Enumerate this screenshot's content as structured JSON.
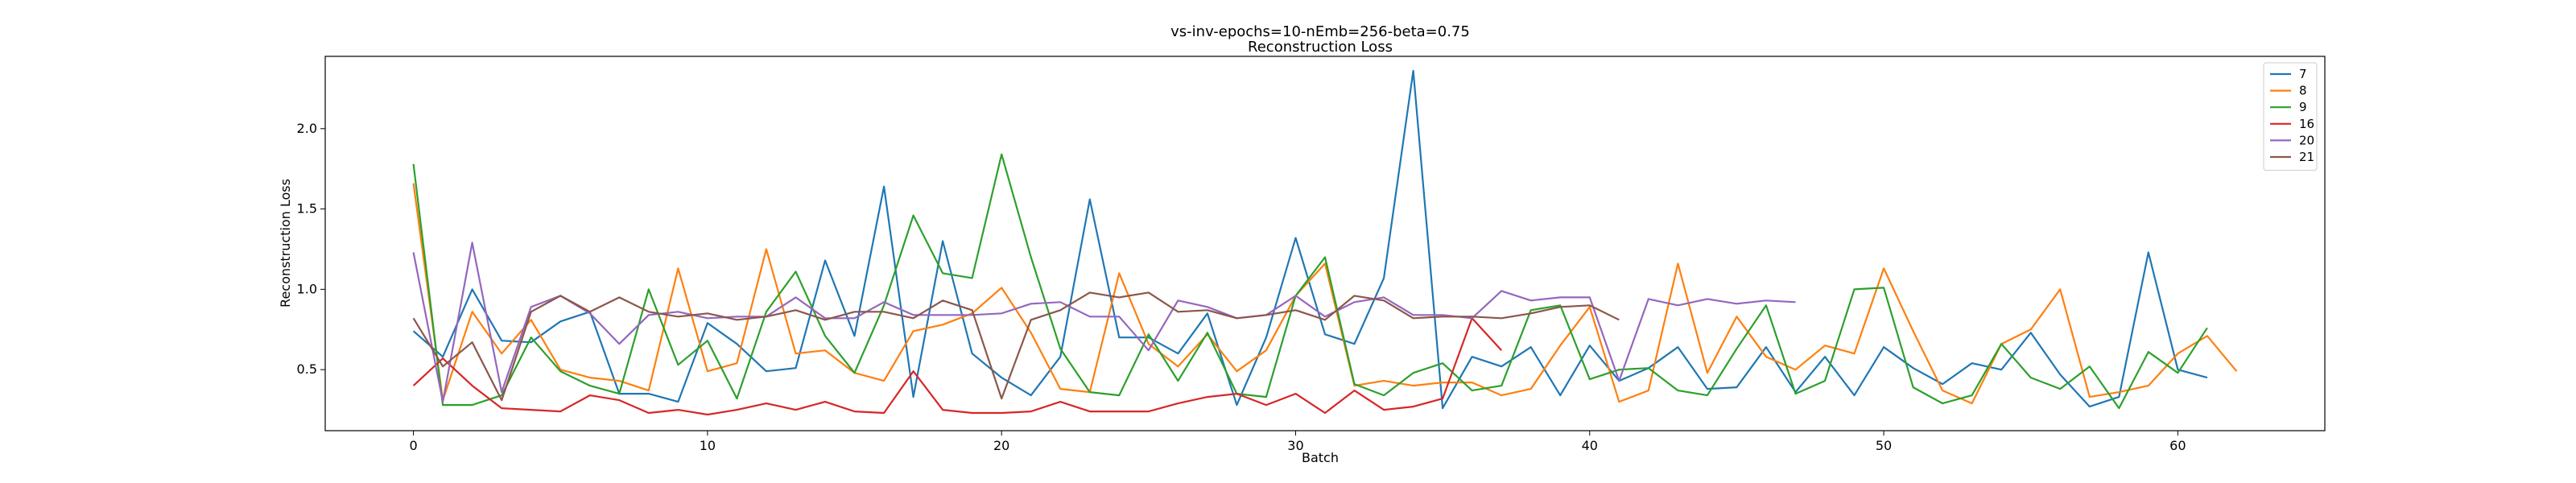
{
  "chart_data": {
    "type": "line",
    "title": "vs-inv-epochs=10-nEmb=256-beta=0.75",
    "subtitle": "Reconstruction Loss",
    "xlabel": "Batch",
    "ylabel": "Reconstruction Loss",
    "xlim": [
      -3,
      65
    ],
    "ylim": [
      0.12,
      2.45
    ],
    "xticks": [
      0,
      10,
      20,
      30,
      40,
      50,
      60
    ],
    "yticks": [
      0.5,
      1.0,
      1.5,
      2.0
    ],
    "ytick_labels": [
      "0.5",
      "1.0",
      "1.5",
      "2.0"
    ],
    "grid": false,
    "legend_position": "top-right",
    "series": [
      {
        "name": "7",
        "color": "#1f77b4",
        "values": [
          0.74,
          0.58,
          1.0,
          0.68,
          0.67,
          0.8,
          0.86,
          0.35,
          0.35,
          0.3,
          0.79,
          0.66,
          0.49,
          0.51,
          1.18,
          0.71,
          1.64,
          0.33,
          1.3,
          0.6,
          0.45,
          0.34,
          0.58,
          1.56,
          0.7,
          0.7,
          0.6,
          0.85,
          0.28,
          0.7,
          1.32,
          0.72,
          0.66,
          1.07,
          2.36,
          0.26,
          0.58,
          0.52,
          0.64,
          0.34,
          0.65,
          0.43,
          0.51,
          0.64,
          0.38,
          0.39,
          0.64,
          0.36,
          0.58,
          0.34,
          0.64,
          0.51,
          0.41,
          0.54,
          0.5,
          0.73,
          0.47,
          0.27,
          0.33,
          1.23,
          0.5,
          0.45
        ]
      },
      {
        "name": "8",
        "color": "#ff7f0e",
        "values": [
          1.66,
          0.31,
          0.86,
          0.6,
          0.81,
          0.5,
          0.45,
          0.43,
          0.37,
          1.13,
          0.49,
          0.54,
          1.25,
          0.6,
          0.62,
          0.48,
          0.43,
          0.74,
          0.78,
          0.85,
          1.01,
          0.73,
          0.38,
          0.36,
          1.1,
          0.66,
          0.52,
          0.72,
          0.49,
          0.62,
          0.96,
          1.16,
          0.4,
          0.43,
          0.4,
          0.42,
          0.42,
          0.34,
          0.38,
          0.65,
          0.89,
          0.3,
          0.37,
          1.16,
          0.48,
          0.83,
          0.58,
          0.5,
          0.65,
          0.6,
          1.13,
          0.74,
          0.37,
          0.29,
          0.66,
          0.75,
          1.0,
          0.33,
          0.36,
          0.4,
          0.6,
          0.71,
          0.49
        ]
      },
      {
        "name": "9",
        "color": "#2ca02c",
        "values": [
          1.78,
          0.28,
          0.28,
          0.34,
          0.7,
          0.49,
          0.4,
          0.35,
          1.0,
          0.53,
          0.68,
          0.32,
          0.86,
          1.11,
          0.71,
          0.48,
          0.9,
          1.46,
          1.1,
          1.07,
          1.84,
          1.2,
          0.63,
          0.36,
          0.34,
          0.72,
          0.43,
          0.73,
          0.35,
          0.33,
          0.96,
          1.2,
          0.41,
          0.34,
          0.48,
          0.54,
          0.37,
          0.4,
          0.87,
          0.9,
          0.44,
          0.5,
          0.51,
          0.37,
          0.34,
          0.63,
          0.9,
          0.35,
          0.43,
          1.0,
          1.01,
          0.39,
          0.29,
          0.34,
          0.66,
          0.45,
          0.38,
          0.52,
          0.26,
          0.61,
          0.48,
          0.76
        ]
      },
      {
        "name": "16",
        "color": "#d62728",
        "values": [
          0.4,
          0.57,
          0.4,
          0.26,
          0.25,
          0.24,
          0.34,
          0.31,
          0.23,
          0.25,
          0.22,
          0.25,
          0.29,
          0.25,
          0.3,
          0.24,
          0.23,
          0.49,
          0.25,
          0.23,
          0.23,
          0.24,
          0.3,
          0.24,
          0.24,
          0.24,
          0.29,
          0.33,
          0.35,
          0.28,
          0.35,
          0.23,
          0.37,
          0.25,
          0.27,
          0.32,
          0.82,
          0.62
        ]
      },
      {
        "name": "20",
        "color": "#9467bd",
        "values": [
          1.23,
          0.3,
          1.29,
          0.36,
          0.89,
          0.96,
          0.85,
          0.66,
          0.84,
          0.86,
          0.82,
          0.83,
          0.83,
          0.95,
          0.82,
          0.82,
          0.92,
          0.84,
          0.84,
          0.84,
          0.85,
          0.91,
          0.92,
          0.83,
          0.83,
          0.62,
          0.93,
          0.89,
          0.82,
          0.84,
          0.96,
          0.83,
          0.92,
          0.95,
          0.84,
          0.84,
          0.82,
          0.99,
          0.93,
          0.95,
          0.95,
          0.43,
          0.94,
          0.9,
          0.94,
          0.91,
          0.93,
          0.92
        ]
      },
      {
        "name": "21",
        "color": "#8c564b",
        "values": [
          0.82,
          0.52,
          0.67,
          0.31,
          0.86,
          0.96,
          0.86,
          0.95,
          0.86,
          0.83,
          0.85,
          0.81,
          0.83,
          0.87,
          0.81,
          0.86,
          0.86,
          0.82,
          0.93,
          0.87,
          0.32,
          0.81,
          0.87,
          0.98,
          0.95,
          0.98,
          0.86,
          0.87,
          0.82,
          0.84,
          0.87,
          0.81,
          0.96,
          0.93,
          0.82,
          0.83,
          0.83,
          0.82,
          0.85,
          0.89,
          0.9,
          0.81
        ]
      }
    ]
  }
}
